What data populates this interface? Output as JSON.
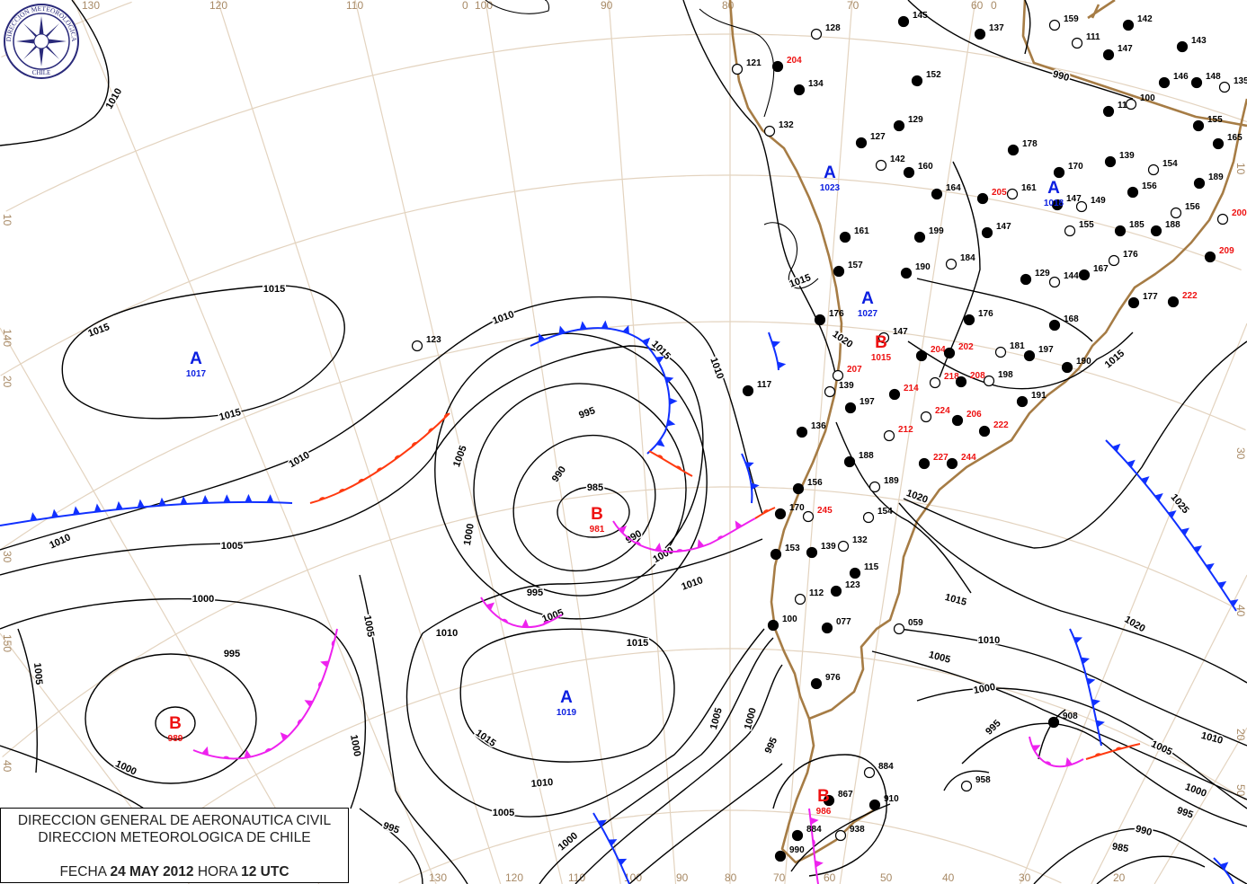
{
  "title_box": {
    "line1": "DIRECCION GENERAL DE AERONAUTICA CIVIL",
    "line2": "DIRECCION METEOROLOGICA DE CHILE",
    "date_prefix": "FECHA",
    "date": "24 MAY 2012",
    "hour_prefix": "HORA",
    "hour": "12 UTC"
  },
  "logo": {
    "ring_text_top": "DIRECCION METEOROLOGICA",
    "ring_text_bottom": "CHILE",
    "color": "#2a2a7a"
  },
  "colors": {
    "isobar": "#000000",
    "coast": "#a67c45",
    "graticule": "#e3d3bf",
    "high": "#0a1ee0",
    "low": "#ee1111",
    "cold_front": "#1030ff",
    "warm_front": "#ff3a10",
    "occluded_front": "#ee22ee"
  },
  "graticule_labels": {
    "top": [
      "130",
      "120",
      "110",
      "100",
      "0",
      "90",
      "80",
      "70",
      "60",
      "0"
    ],
    "bottom": [
      "130",
      "120",
      "110",
      "100",
      "90",
      "80",
      "70",
      "60",
      "50",
      "40",
      "30",
      "20"
    ],
    "left": [
      "10",
      "140",
      "20",
      "30",
      "150",
      "40"
    ],
    "right": [
      "10",
      "30",
      "40",
      "20",
      "50"
    ]
  },
  "pressure_centers": [
    {
      "type": "A",
      "value": "1017"
    },
    {
      "type": "A",
      "value": "1019"
    },
    {
      "type": "B",
      "value": "981"
    },
    {
      "type": "B",
      "value": "989"
    },
    {
      "type": "A",
      "value": "1023"
    },
    {
      "type": "A",
      "value": "1027"
    },
    {
      "type": "B",
      "value": "1015"
    },
    {
      "type": "A",
      "value": "1018"
    },
    {
      "type": "B",
      "value": "986"
    }
  ],
  "isobar_labels": [
    "1010",
    "1015",
    "1015",
    "1015",
    "1010",
    "1010",
    "1010",
    "1005",
    "1005",
    "995",
    "990",
    "985",
    "1000",
    "995",
    "990",
    "1000",
    "1005",
    "1010",
    "1005",
    "1000",
    "995",
    "1005",
    "1000",
    "1010",
    "1015",
    "1015",
    "1010",
    "1005",
    "1000",
    "995",
    "1000",
    "1005",
    "995",
    "1000",
    "1010",
    "1015",
    "1020",
    "1015",
    "1020",
    "1025",
    "1020",
    "1015",
    "1010",
    "1005",
    "1000",
    "995",
    "990",
    "985",
    "1010",
    "1005",
    "1000",
    "995",
    "990",
    "1015",
    "1020"
  ],
  "stations": [
    {
      "v": "128",
      "c": "#000"
    },
    {
      "v": "145",
      "c": "#000"
    },
    {
      "v": "137",
      "c": "#000"
    },
    {
      "v": "159",
      "c": "#000"
    },
    {
      "v": "142",
      "c": "#000"
    },
    {
      "v": "143",
      "c": "#000"
    },
    {
      "v": "121",
      "c": "#000"
    },
    {
      "v": "134",
      "c": "#000"
    },
    {
      "v": "152",
      "c": "#000"
    },
    {
      "v": "111",
      "c": "#000"
    },
    {
      "v": "147",
      "c": "#000"
    },
    {
      "v": "148",
      "c": "#000"
    },
    {
      "v": "135",
      "c": "#000"
    },
    {
      "v": "146",
      "c": "#000"
    },
    {
      "v": "116",
      "c": "#000"
    },
    {
      "v": "100",
      "c": "#000"
    },
    {
      "v": "155",
      "c": "#000"
    },
    {
      "v": "165",
      "c": "#000"
    },
    {
      "v": "132",
      "c": "#000"
    },
    {
      "v": "129",
      "c": "#000"
    },
    {
      "v": "127",
      "c": "#000"
    },
    {
      "v": "142",
      "c": "#000"
    },
    {
      "v": "160",
      "c": "#000"
    },
    {
      "v": "164",
      "c": "#000"
    },
    {
      "v": "161",
      "c": "#000"
    },
    {
      "v": "170",
      "c": "#000"
    },
    {
      "v": "139",
      "c": "#000"
    },
    {
      "v": "154",
      "c": "#000"
    },
    {
      "v": "189",
      "c": "#000"
    },
    {
      "v": "178",
      "c": "#000"
    },
    {
      "v": "149",
      "c": "#000"
    },
    {
      "v": "147",
      "c": "#000"
    },
    {
      "v": "156",
      "c": "#000"
    },
    {
      "v": "156",
      "c": "#000"
    },
    {
      "v": "161",
      "c": "#000"
    },
    {
      "v": "199",
      "c": "#000"
    },
    {
      "v": "155",
      "c": "#000"
    },
    {
      "v": "185",
      "c": "#000"
    },
    {
      "v": "188",
      "c": "#000"
    },
    {
      "v": "184",
      "c": "#000"
    },
    {
      "v": "190",
      "c": "#000"
    },
    {
      "v": "157",
      "c": "#000"
    },
    {
      "v": "176",
      "c": "#000"
    },
    {
      "v": "167",
      "c": "#000"
    },
    {
      "v": "147",
      "c": "#000"
    },
    {
      "v": "123",
      "c": "#000"
    },
    {
      "v": "117",
      "c": "#000"
    },
    {
      "v": "129",
      "c": "#000"
    },
    {
      "v": "144",
      "c": "#000"
    },
    {
      "v": "168",
      "c": "#000"
    },
    {
      "v": "176",
      "c": "#000"
    },
    {
      "v": "147",
      "c": "#000"
    },
    {
      "v": "176",
      "c": "#000"
    },
    {
      "v": "177",
      "c": "#000"
    },
    {
      "v": "181",
      "c": "#000"
    },
    {
      "v": "197",
      "c": "#000"
    },
    {
      "v": "190",
      "c": "#000"
    },
    {
      "v": "198",
      "c": "#000"
    },
    {
      "v": "191",
      "c": "#000"
    },
    {
      "v": "136",
      "c": "#000"
    },
    {
      "v": "139",
      "c": "#000"
    },
    {
      "v": "197",
      "c": "#000"
    },
    {
      "v": "188",
      "c": "#000"
    },
    {
      "v": "189",
      "c": "#000"
    },
    {
      "v": "156",
      "c": "#000"
    },
    {
      "v": "170",
      "c": "#000"
    },
    {
      "v": "154",
      "c": "#000"
    },
    {
      "v": "153",
      "c": "#000"
    },
    {
      "v": "139",
      "c": "#000"
    },
    {
      "v": "132",
      "c": "#000"
    },
    {
      "v": "115",
      "c": "#000"
    },
    {
      "v": "123",
      "c": "#000"
    },
    {
      "v": "112",
      "c": "#000"
    },
    {
      "v": "100",
      "c": "#000"
    },
    {
      "v": "077",
      "c": "#000"
    },
    {
      "v": "059",
      "c": "#000"
    },
    {
      "v": "976",
      "c": "#000"
    },
    {
      "v": "908",
      "c": "#000"
    },
    {
      "v": "884",
      "c": "#000"
    },
    {
      "v": "867",
      "c": "#000"
    },
    {
      "v": "910",
      "c": "#000"
    },
    {
      "v": "938",
      "c": "#000"
    },
    {
      "v": "884",
      "c": "#000"
    },
    {
      "v": "990",
      "c": "#000"
    },
    {
      "v": "958",
      "c": "#000"
    },
    {
      "v": "204",
      "c": "#e11"
    },
    {
      "v": "205",
      "c": "#e11"
    },
    {
      "v": "200",
      "c": "#e11"
    },
    {
      "v": "209",
      "c": "#e11"
    },
    {
      "v": "222",
      "c": "#e11"
    },
    {
      "v": "207",
      "c": "#e11"
    },
    {
      "v": "204",
      "c": "#e11"
    },
    {
      "v": "202",
      "c": "#e11"
    },
    {
      "v": "218",
      "c": "#e11"
    },
    {
      "v": "208",
      "c": "#e11"
    },
    {
      "v": "214",
      "c": "#e11"
    },
    {
      "v": "224",
      "c": "#e11"
    },
    {
      "v": "206",
      "c": "#e11"
    },
    {
      "v": "222",
      "c": "#e11"
    },
    {
      "v": "212",
      "c": "#e11"
    },
    {
      "v": "227",
      "c": "#e11"
    },
    {
      "v": "244",
      "c": "#e11"
    },
    {
      "v": "245",
      "c": "#e11"
    }
  ],
  "fronts": [
    {
      "type": "cold"
    },
    {
      "type": "warm"
    },
    {
      "type": "cold"
    },
    {
      "type": "warm"
    },
    {
      "type": "occluded"
    },
    {
      "type": "warm"
    },
    {
      "type": "occluded"
    },
    {
      "type": "occluded"
    },
    {
      "type": "cold"
    },
    {
      "type": "cold"
    },
    {
      "type": "cold"
    },
    {
      "type": "cold"
    },
    {
      "type": "occluded"
    },
    {
      "type": "warm"
    },
    {
      "type": "cold"
    },
    {
      "type": "cold"
    },
    {
      "type": "occluded"
    }
  ]
}
